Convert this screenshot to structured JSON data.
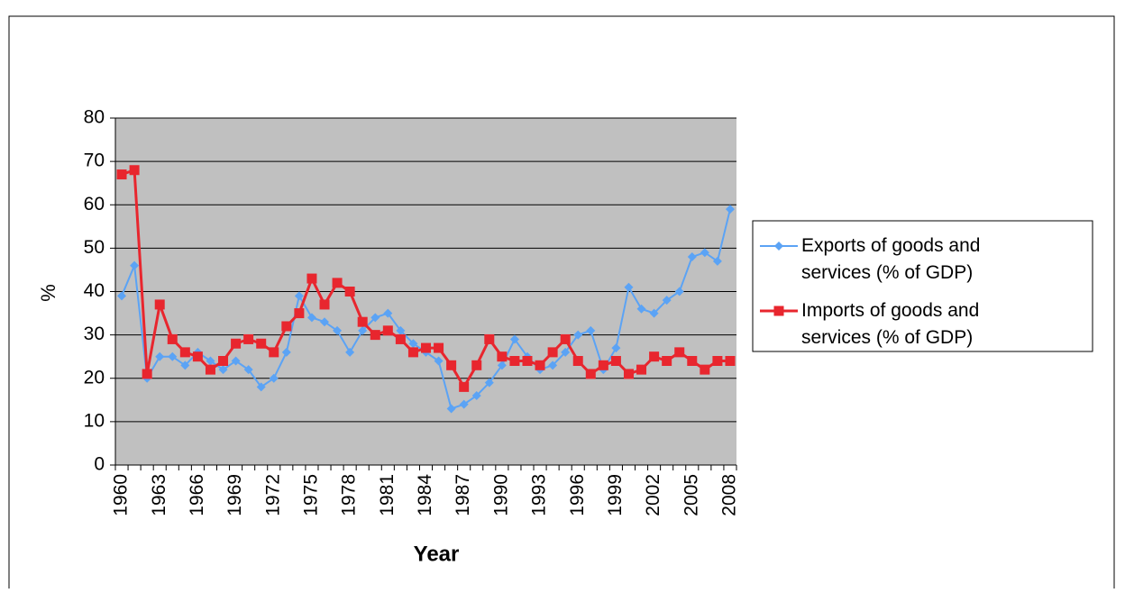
{
  "chart_data": {
    "type": "line",
    "x_label": "Year",
    "y_label": "%",
    "categories": [
      "1960",
      null,
      null,
      "1963",
      null,
      null,
      "1966",
      null,
      null,
      "1969",
      null,
      null,
      "1972",
      null,
      null,
      "1975",
      null,
      null,
      "1978",
      null,
      null,
      "1981",
      null,
      null,
      "1984",
      null,
      null,
      "1987",
      null,
      null,
      "1990",
      null,
      null,
      "1993",
      null,
      null,
      "1996",
      null,
      null,
      "1999",
      null,
      null,
      "2002",
      null,
      null,
      "2005",
      null,
      null,
      "2008"
    ],
    "series": [
      {
        "name": "Exports of goods and services (% of GDP)",
        "color": "#5ba3f5",
        "marker": "diamond",
        "values": [
          39,
          46,
          20,
          25,
          25,
          23,
          26,
          24,
          22,
          24,
          22,
          18,
          20,
          26,
          39,
          34,
          33,
          31,
          26,
          31,
          34,
          35,
          31,
          28,
          26,
          24,
          13,
          14,
          16,
          19,
          23,
          29,
          25,
          22,
          23,
          26,
          30,
          31,
          22,
          27,
          41,
          36,
          35,
          38,
          40,
          48,
          49,
          47,
          59
        ]
      },
      {
        "name": "Imports of goods and services (% of GDP)",
        "color": "#e8262e",
        "marker": "square",
        "values": [
          67,
          68,
          21,
          37,
          29,
          26,
          25,
          22,
          24,
          28,
          29,
          28,
          26,
          32,
          35,
          43,
          37,
          42,
          40,
          33,
          30,
          31,
          29,
          26,
          27,
          27,
          23,
          18,
          23,
          29,
          25,
          24,
          24,
          23,
          26,
          29,
          24,
          21,
          23,
          24,
          21,
          22,
          25,
          24,
          26,
          24,
          22,
          24,
          24
        ]
      }
    ],
    "ylim": [
      0,
      80
    ],
    "yticks": [
      0,
      10,
      20,
      30,
      40,
      50,
      60,
      70,
      80
    ],
    "grid": true,
    "plot_background": "#c0c0c0",
    "legend": "right"
  }
}
